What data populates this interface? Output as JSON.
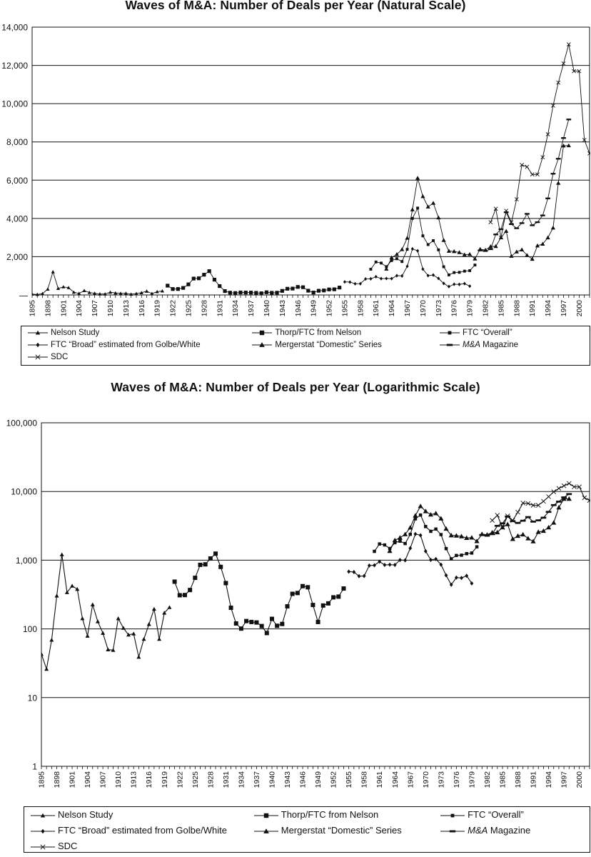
{
  "chart_data": [
    {
      "id": "natural",
      "type": "line",
      "title": "Waves of M&A: Number of Deals per Year (Natural Scale)",
      "xlabel": "",
      "ylabel": "",
      "yscale": "linear",
      "xlim": [
        1895,
        2002
      ],
      "ylim": [
        0,
        14000
      ],
      "ytick_labels": [
        {
          "value": 0,
          "label": "—"
        },
        {
          "value": 2000,
          "label": "2,000"
        },
        {
          "value": 4000,
          "label": "4,000"
        },
        {
          "value": 6000,
          "label": "6,000"
        },
        {
          "value": 8000,
          "label": "8,000"
        },
        {
          "value": 10000,
          "label": "10,000"
        },
        {
          "value": 12000,
          "label": "12,000"
        },
        {
          "value": 14000,
          "label": "14,000"
        }
      ],
      "xtick_labels": [
        "1895",
        "1898",
        "1901",
        "1904",
        "1907",
        "1910",
        "1913",
        "1916",
        "1919",
        "1922",
        "1925",
        "1928",
        "1931",
        "1934",
        "1937",
        "1940",
        "1943",
        "1946",
        "1949",
        "1952",
        "1955",
        "1958",
        "1961",
        "1964",
        "1967",
        "1970",
        "1973",
        "1976",
        "1979",
        "1982",
        "1985",
        "1988",
        "1991",
        "1994",
        "1997",
        "2000"
      ],
      "grid": "horizontal",
      "legend_position": "bottom"
    },
    {
      "id": "log",
      "type": "line",
      "title": "Waves of M&A: Number of Deals per Year (Logarithmic Scale)",
      "xlabel": "",
      "ylabel": "",
      "yscale": "log",
      "xlim": [
        1895,
        2002
      ],
      "ylim": [
        1,
        100000
      ],
      "ytick_labels": [
        {
          "value": 1,
          "label": "1"
        },
        {
          "value": 10,
          "label": "10"
        },
        {
          "value": 100,
          "label": "100"
        },
        {
          "value": 1000,
          "label": "1,000"
        },
        {
          "value": 10000,
          "label": "10,000"
        },
        {
          "value": 100000,
          "label": "100,000"
        }
      ],
      "xtick_labels": [
        "1895",
        "1898",
        "1901",
        "1904",
        "1907",
        "1910",
        "1913",
        "1916",
        "1919",
        "1922",
        "1925",
        "1928",
        "1931",
        "1934",
        "1937",
        "1940",
        "1943",
        "1946",
        "1949",
        "1952",
        "1955",
        "1958",
        "1961",
        "1964",
        "1967",
        "1970",
        "1973",
        "1976",
        "1979",
        "1982",
        "1985",
        "1988",
        "1991",
        "1994",
        "1997",
        "2000"
      ],
      "grid": "horizontal",
      "legend_position": "bottom"
    }
  ],
  "series": [
    {
      "name": "Nelson Study",
      "marker": "triangle-small",
      "x": [
        1895,
        1896,
        1897,
        1898,
        1899,
        1900,
        1901,
        1902,
        1903,
        1904,
        1905,
        1906,
        1907,
        1908,
        1909,
        1910,
        1911,
        1912,
        1913,
        1914,
        1915,
        1916,
        1917,
        1918,
        1919,
        1920
      ],
      "y": [
        43,
        26,
        69,
        303,
        1208,
        340,
        423,
        379,
        142,
        79,
        226,
        128,
        87,
        50,
        49,
        142,
        103,
        82,
        85,
        39,
        71,
        117,
        195,
        71,
        171,
        206
      ]
    },
    {
      "name": "Thorp/FTC from Nelson",
      "marker": "square",
      "x": [
        1921,
        1922,
        1923,
        1924,
        1925,
        1926,
        1927,
        1928,
        1929,
        1930,
        1931,
        1932,
        1933,
        1934,
        1935,
        1936,
        1937,
        1938,
        1939,
        1940,
        1941,
        1942,
        1943,
        1944,
        1945,
        1946,
        1947,
        1948,
        1949,
        1950,
        1951,
        1952,
        1953,
        1954
      ],
      "y": [
        487,
        309,
        311,
        368,
        554,
        856,
        870,
        1058,
        1245,
        799,
        464,
        203,
        120,
        101,
        130,
        126,
        124,
        110,
        87,
        140,
        111,
        118,
        213,
        324,
        333,
        419,
        404,
        223,
        126,
        219,
        235,
        288,
        295,
        387
      ]
    },
    {
      "name": "FTC “Broad” estimated from Golbe/White",
      "marker": "diamond-small",
      "x": [
        1955,
        1956,
        1957,
        1958,
        1959,
        1960,
        1961,
        1962,
        1963,
        1964,
        1965,
        1966,
        1967,
        1968,
        1969,
        1970,
        1971,
        1972,
        1973,
        1974,
        1975,
        1976,
        1977,
        1978,
        1979
      ],
      "y": [
        683,
        673,
        585,
        589,
        835,
        844,
        954,
        853,
        861,
        854,
        1008,
        995,
        1496,
        2407,
        2307,
        1351,
        1011,
        1041,
        862,
        602,
        439,
        559,
        551,
        593,
        460
      ]
    },
    {
      "name": "FTC “Overall”",
      "marker": "square-small",
      "x": [
        1960,
        1961,
        1962,
        1963,
        1964,
        1965,
        1966,
        1967,
        1968,
        1969,
        1970,
        1971,
        1972,
        1973,
        1974,
        1975,
        1976,
        1977,
        1978,
        1979,
        1980
      ],
      "y": [
        1345,
        1724,
        1667,
        1479,
        1797,
        1893,
        1746,
        2384,
        4003,
        4542,
        3089,
        2633,
        2839,
        2359,
        1474,
        1047,
        1171,
        1183,
        1245,
        1271,
        1565
      ]
    },
    {
      "name": "Mergerstat “Domestic” Series",
      "marker": "triangle-open",
      "x": [
        1963,
        1964,
        1965,
        1966,
        1967,
        1968,
        1969,
        1970,
        1971,
        1972,
        1973,
        1974,
        1975,
        1976,
        1977,
        1978,
        1979,
        1980,
        1981,
        1982,
        1983,
        1984,
        1985,
        1986,
        1987,
        1988,
        1989,
        1990,
        1991,
        1992,
        1993,
        1994,
        1995,
        1996,
        1997,
        1998
      ],
      "y": [
        1361,
        1950,
        2125,
        2377,
        2975,
        4462,
        6107,
        5152,
        4608,
        4801,
        4040,
        2861,
        2297,
        2276,
        2224,
        2106,
        2128,
        1889,
        2395,
        2346,
        2533,
        2543,
        3001,
        3336,
        2032,
        2258,
        2366,
        2074,
        1877,
        2574,
        2663,
        2997,
        3510,
        5848,
        7800,
        7809
      ]
    },
    {
      "name": "M&A Magazine",
      "marker": "dash",
      "x": [
        1981,
        1982,
        1983,
        1984,
        1985,
        1986,
        1987,
        1988,
        1989,
        1990,
        1991,
        1992,
        1993,
        1994,
        1995,
        1996,
        1997,
        1998
      ],
      "y": [
        2326,
        2298,
        2393,
        3164,
        3437,
        4323,
        3701,
        3487,
        3756,
        4239,
        3642,
        3804,
        4157,
        5048,
        6337,
        7120,
        8204,
        9174
      ]
    },
    {
      "name": "SDC",
      "marker": "x",
      "x": [
        1983,
        1984,
        1985,
        1986,
        1987,
        1988,
        1989,
        1990,
        1991,
        1992,
        1993,
        1994,
        1995,
        1996,
        1997,
        1998,
        1999,
        2000,
        2001,
        2002
      ],
      "y": [
        3800,
        4507,
        3000,
        4400,
        3800,
        5000,
        6800,
        6700,
        6300,
        6300,
        7200,
        8400,
        9900,
        11100,
        12100,
        13100,
        11700,
        11700,
        8100,
        7400
      ]
    }
  ],
  "legend_entries": [
    {
      "label": "Nelson Study",
      "italic_prefix": "",
      "rest": "Nelson Study",
      "marker": "triangle-small"
    },
    {
      "label": "Thorp/FTC from Nelson",
      "italic_prefix": "",
      "rest": "Thorp/FTC from Nelson",
      "marker": "square"
    },
    {
      "label": "FTC “Overall”",
      "italic_prefix": "",
      "rest": "FTC “Overall”",
      "marker": "square-small"
    },
    {
      "label": "FTC “Broad” estimated from Golbe/White",
      "italic_prefix": "",
      "rest": "FTC “Broad” estimated from Golbe/White",
      "marker": "diamond-small"
    },
    {
      "label": "Mergerstat “Domestic” Series",
      "italic_prefix": "",
      "rest": "Mergerstat “Domestic” Series",
      "marker": "triangle-open"
    },
    {
      "label": "M&A Magazine",
      "italic_prefix": "M&A",
      "rest": " Magazine",
      "marker": "dash"
    },
    {
      "label": "SDC",
      "italic_prefix": "",
      "rest": "SDC",
      "marker": "x"
    }
  ]
}
